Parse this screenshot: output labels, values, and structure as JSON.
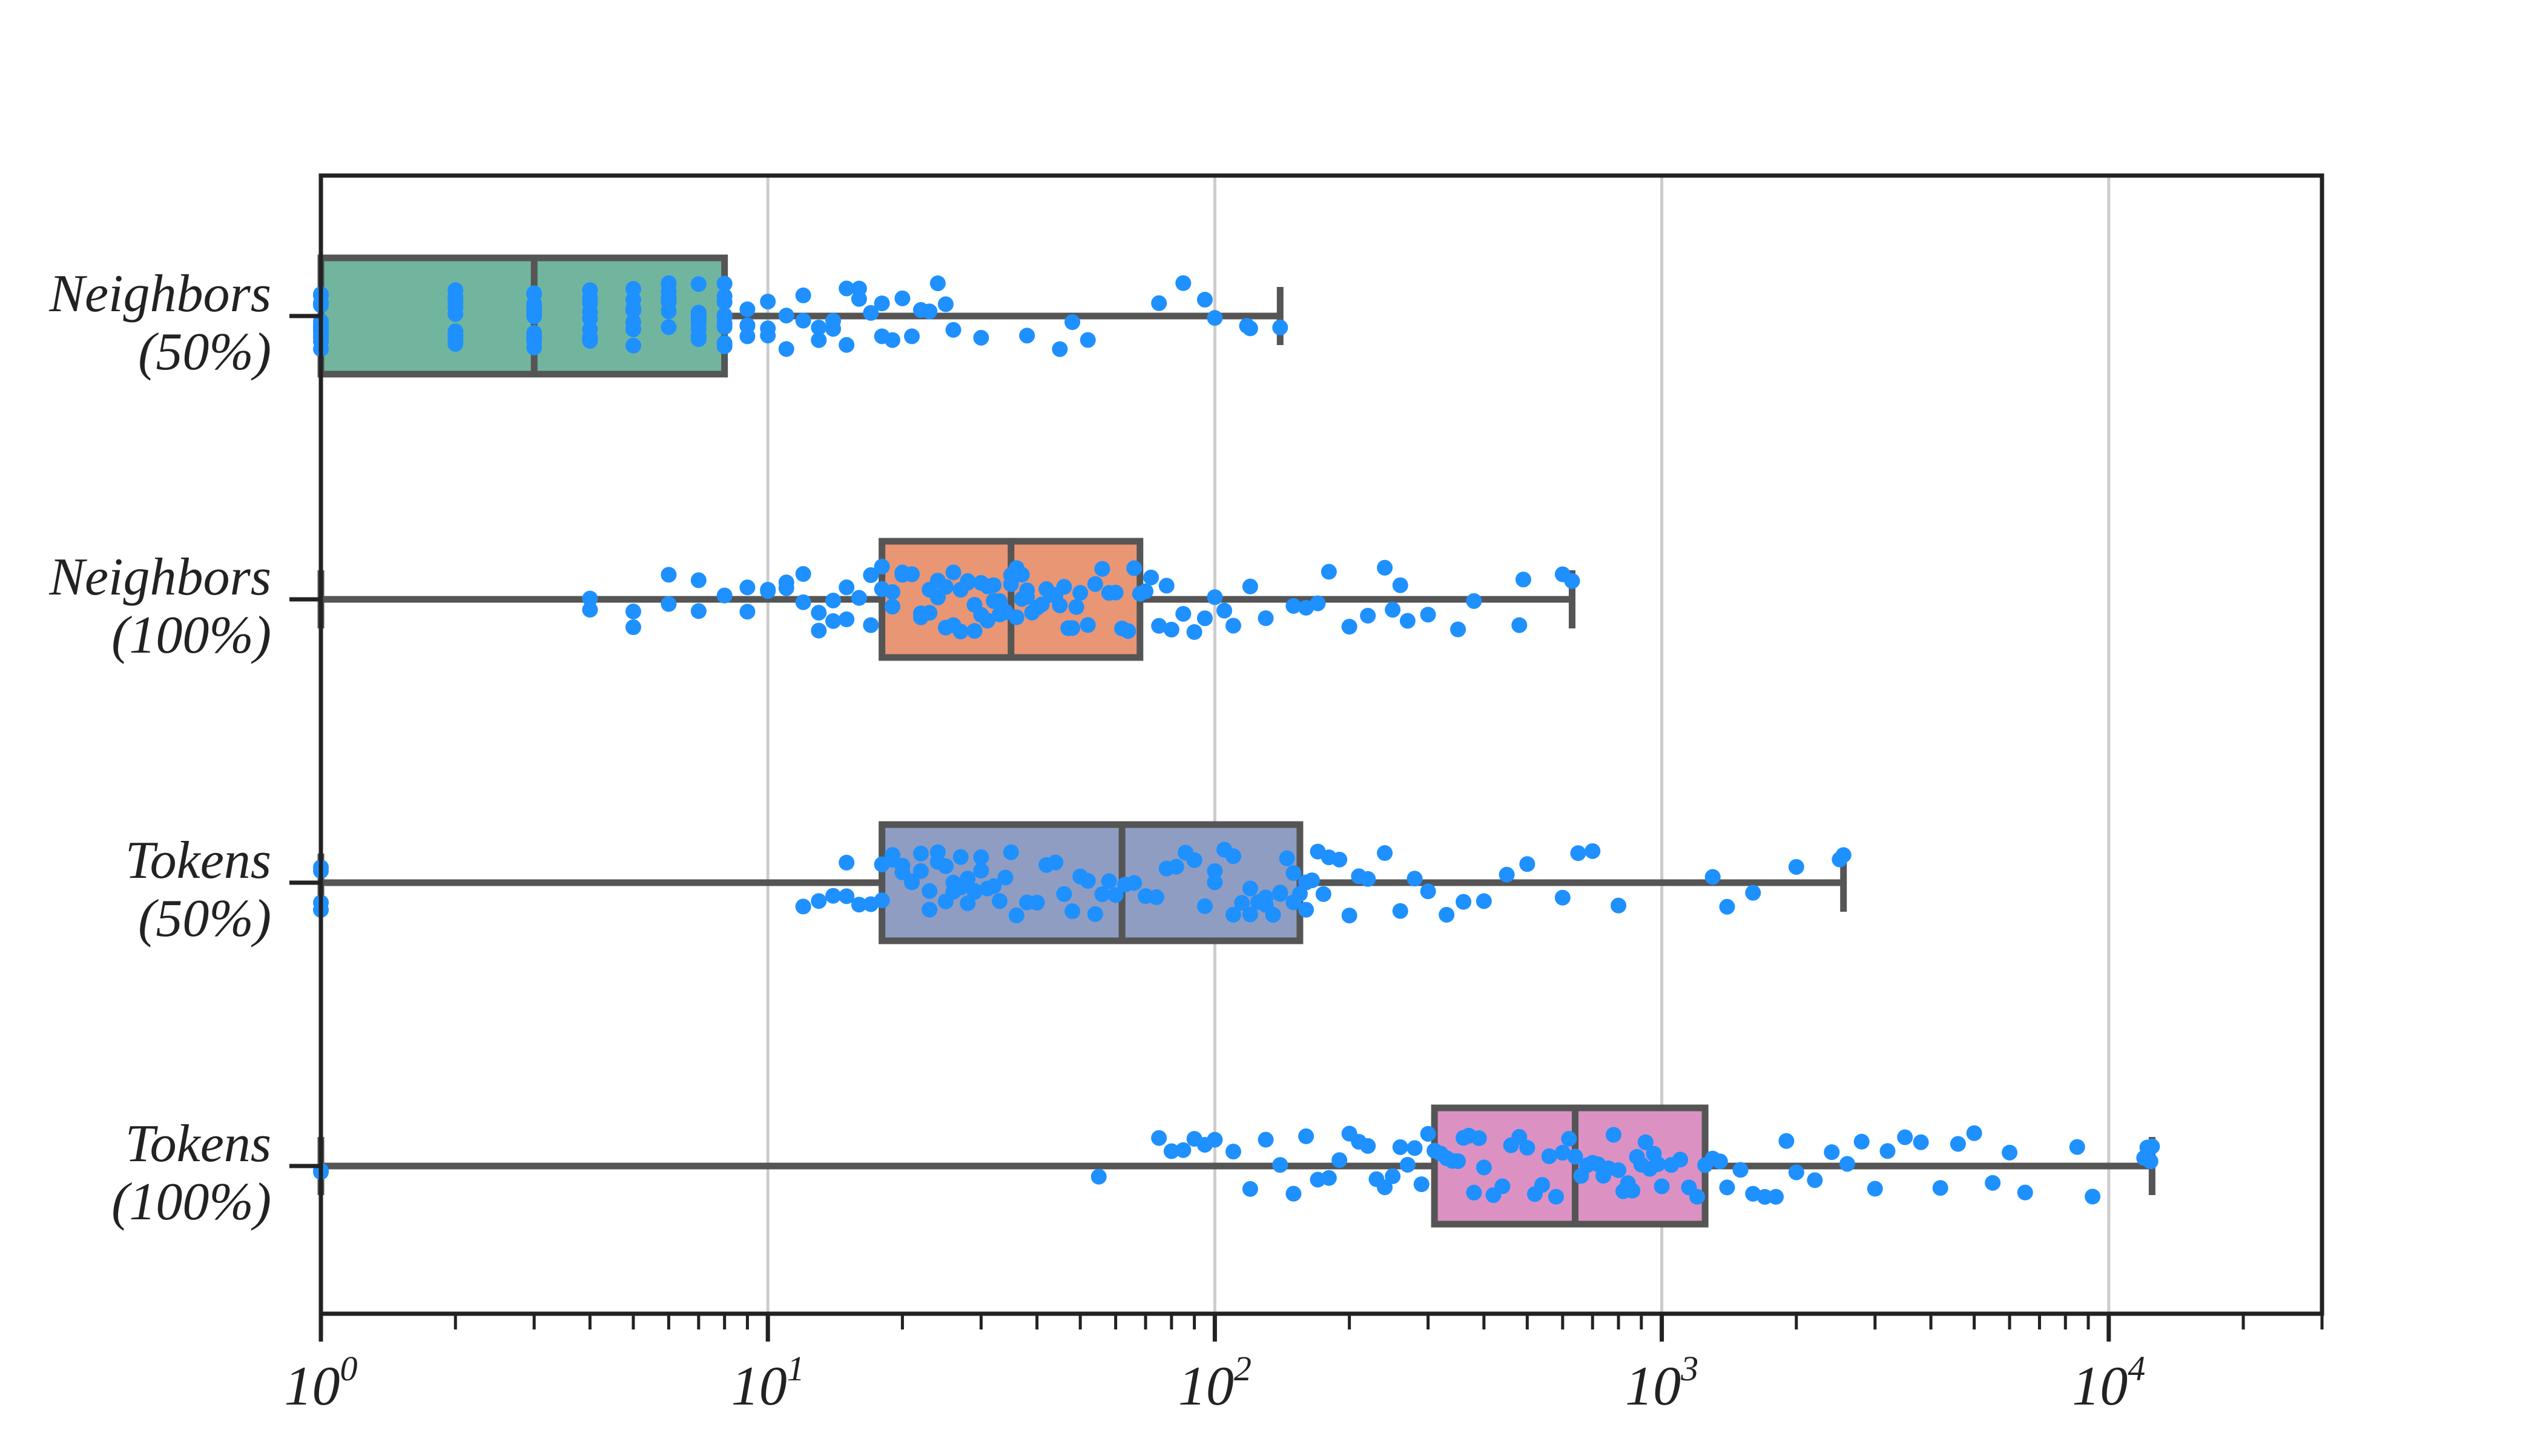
{
  "chart_data": {
    "type": "box",
    "orientation": "horizontal",
    "title": "",
    "xlabel": "",
    "ylabel": "",
    "xscale": "log",
    "xlim": [
      1,
      30000
    ],
    "grid": "vertical lines at major ticks",
    "x_ticks": [
      {
        "value": 1,
        "base": "10",
        "exp": "0"
      },
      {
        "value": 10,
        "base": "10",
        "exp": "1"
      },
      {
        "value": 100,
        "base": "10",
        "exp": "2"
      },
      {
        "value": 1000,
        "base": "10",
        "exp": "3"
      },
      {
        "value": 10000,
        "base": "10",
        "exp": "4"
      }
    ],
    "categories": [
      {
        "line1": "Neighbors",
        "line2": "(50%)"
      },
      {
        "line1": "Neighbors",
        "line2": "(100%)"
      },
      {
        "line1": "Tokens",
        "line2": "(50%)"
      },
      {
        "line1": "Tokens",
        "line2": "(100%)"
      }
    ],
    "boxes": [
      {
        "whislo": 1,
        "q1": 1,
        "med": 3,
        "q3": 8,
        "whishi": 140,
        "color": "#72b59f"
      },
      {
        "whislo": 1,
        "q1": 18,
        "med": 35,
        "q3": 68,
        "whishi": 630,
        "color": "#e99675"
      },
      {
        "whislo": 1,
        "q1": 18,
        "med": 62,
        "q3": 155,
        "whishi": 2550,
        "color": "#8f9dc2"
      },
      {
        "whislo": 1,
        "q1": 310,
        "med": 640,
        "q3": 1250,
        "whishi": 12500,
        "color": "#db92c3"
      }
    ],
    "points": [
      [
        1,
        1,
        1,
        1,
        1,
        1,
        1,
        1,
        1,
        1,
        1,
        1,
        1,
        1,
        1,
        2,
        2,
        2,
        2,
        2,
        2,
        2,
        2,
        2,
        2,
        2,
        2,
        3,
        3,
        3,
        3,
        3,
        3,
        3,
        3,
        3,
        3,
        3,
        3,
        4,
        4,
        4,
        4,
        4,
        4,
        4,
        4,
        4,
        5,
        5,
        5,
        5,
        5,
        5,
        5,
        5,
        5,
        5,
        6,
        6,
        6,
        6,
        6,
        6,
        6,
        6,
        6,
        6,
        7,
        7,
        7,
        7,
        7,
        7,
        7,
        7,
        7,
        7,
        8,
        8,
        8,
        8,
        8,
        8,
        8,
        8,
        8,
        9,
        9,
        9,
        9,
        10,
        10,
        10,
        11,
        11,
        12,
        12,
        13,
        13,
        14,
        14,
        15,
        15,
        16,
        16,
        17,
        18,
        18,
        19,
        20,
        21,
        22,
        23,
        24,
        25,
        26,
        30,
        38,
        45,
        48,
        52,
        75,
        85,
        95,
        100,
        118,
        120,
        140
      ],
      [
        4,
        4,
        5,
        5,
        6,
        6,
        7,
        7,
        8,
        9,
        9,
        10,
        10,
        11,
        11,
        12,
        12,
        13,
        13,
        14,
        14,
        15,
        15,
        16,
        16,
        17,
        17,
        18,
        18,
        19,
        19,
        20,
        20,
        21,
        21,
        22,
        22,
        23,
        23,
        24,
        24,
        25,
        25,
        26,
        26,
        27,
        27,
        28,
        28,
        29,
        29,
        30,
        30,
        31,
        31,
        32,
        32,
        33,
        33,
        34,
        34,
        35,
        35,
        36,
        36,
        37,
        37,
        38,
        38,
        39,
        40,
        41,
        42,
        43,
        44,
        45,
        46,
        47,
        48,
        49,
        50,
        52,
        54,
        56,
        58,
        60,
        62,
        64,
        66,
        68,
        70,
        72,
        75,
        78,
        80,
        85,
        90,
        95,
        100,
        105,
        110,
        120,
        130,
        150,
        160,
        170,
        180,
        200,
        220,
        240,
        250,
        260,
        270,
        300,
        350,
        380,
        480,
        490,
        600,
        630
      ],
      [
        1,
        1,
        1,
        1,
        12,
        13,
        14,
        15,
        15,
        16,
        17,
        18,
        18,
        19,
        19,
        20,
        20,
        21,
        21,
        22,
        22,
        23,
        23,
        24,
        24,
        25,
        25,
        26,
        26,
        27,
        27,
        28,
        28,
        29,
        29,
        30,
        30,
        31,
        32,
        33,
        34,
        35,
        36,
        38,
        40,
        42,
        44,
        46,
        48,
        50,
        52,
        54,
        56,
        58,
        60,
        63,
        66,
        70,
        74,
        78,
        82,
        86,
        90,
        95,
        100,
        100,
        105,
        110,
        110,
        115,
        120,
        120,
        125,
        130,
        130,
        135,
        140,
        140,
        145,
        150,
        150,
        155,
        160,
        160,
        165,
        170,
        175,
        180,
        190,
        200,
        210,
        220,
        240,
        260,
        280,
        300,
        330,
        360,
        400,
        450,
        500,
        600,
        650,
        700,
        800,
        1300,
        1400,
        1600,
        2000,
        2500,
        2550
      ],
      [
        1,
        1,
        55,
        75,
        80,
        85,
        90,
        95,
        100,
        110,
        120,
        130,
        140,
        150,
        160,
        170,
        180,
        190,
        200,
        210,
        220,
        230,
        240,
        250,
        260,
        270,
        280,
        290,
        300,
        310,
        320,
        330,
        340,
        350,
        360,
        370,
        380,
        390,
        400,
        420,
        440,
        460,
        480,
        500,
        520,
        540,
        560,
        580,
        600,
        620,
        640,
        660,
        680,
        700,
        720,
        740,
        760,
        780,
        800,
        820,
        840,
        860,
        880,
        900,
        920,
        940,
        960,
        980,
        1000,
        1050,
        1100,
        1150,
        1200,
        1250,
        1300,
        1350,
        1400,
        1500,
        1600,
        1700,
        1800,
        1900,
        2000,
        2200,
        2400,
        2600,
        2800,
        3000,
        3200,
        3500,
        3800,
        4200,
        4600,
        5000,
        5500,
        6000,
        6500,
        8500,
        9200,
        12000,
        12200,
        12400,
        12500
      ]
    ]
  }
}
